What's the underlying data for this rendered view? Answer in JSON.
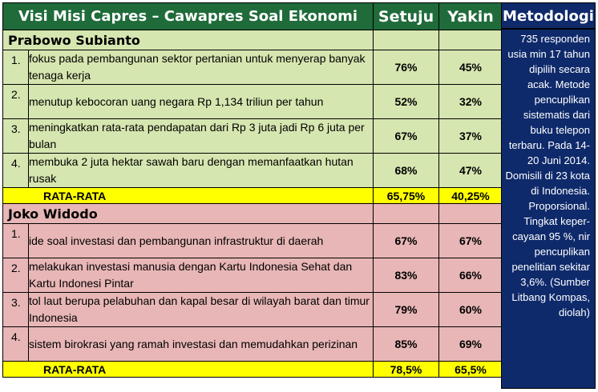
{
  "header": {
    "title": "Visi Misi Capres – Cawapres Soal Ekonomi",
    "col_setuju": "Setuju",
    "col_yakin": "Yakin",
    "col_metodologi": "Metodologi"
  },
  "prabowo": {
    "name": "Prabowo Subianto",
    "items": [
      {
        "no": "1.",
        "text": "fokus pada pembangunan sektor pertanian untuk menyerap banyak tenaga kerja",
        "setuju": "76%",
        "yakin": "45%"
      },
      {
        "no": "2.",
        "text": "menutup kebocoran uang negara Rp 1,134 triliun per tahun",
        "setuju": "52%",
        "yakin": "32%"
      },
      {
        "no": "3.",
        "text": "meningkatkan rata-rata pendapatan dari Rp 3 juta jadi Rp 6 juta per bulan",
        "setuju": "67%",
        "yakin": "37%"
      },
      {
        "no": "4.",
        "text": "membuka 2 juta hektar sawah baru dengan memanfaatkan hutan rusak",
        "setuju": "68%",
        "yakin": "47%"
      }
    ],
    "avg_label": "RATA-RATA",
    "avg_setuju": "65,75%",
    "avg_yakin": "40,25%"
  },
  "jokowi": {
    "name": "Joko Widodo",
    "items": [
      {
        "no": "1.",
        "text": "ide soal investasi dan pembangunan infrastruktur di daerah",
        "setuju": "67%",
        "yakin": "67%"
      },
      {
        "no": "2.",
        "text": "melakukan investasi manusia dengan Kartu Indonesia Sehat dan Kartu Indonesi Pintar",
        "setuju": "83%",
        "yakin": "66%"
      },
      {
        "no": "3.",
        "text": "tol laut berupa pelabuhan dan kapal besar di wilayah barat dan timur Indonesia",
        "setuju": "79%",
        "yakin": "60%"
      },
      {
        "no": "4.",
        "text": "sistem birokrasi yang ramah investasi dan memudahkan perizinan",
        "setuju": "85%",
        "yakin": "69%"
      }
    ],
    "avg_label": "RATA-RATA",
    "avg_setuju": "78,5%",
    "avg_yakin": "65,5%"
  },
  "metodologi": "735 responden usia min 17 tahun dipilih secara acak. Metode pencuplikan sistematis dari buku telepon terbaru. Pada 14-20 Juni 2014. Domisili di 23 kota di Indonesia. Proporsional. Tingkat keper-cayaan 95 %, nir pencuplikan penelitian sekitar 3,6%. (Sumber Litbang Kompas, diolah)",
  "colors": {
    "header_green": "#1f6b3a",
    "metodologi_blue": "#0f2a6b",
    "prabowo_bg": "#d6e6b0",
    "jokowi_bg": "#e8b6b6",
    "average_bg": "#ffff00"
  }
}
